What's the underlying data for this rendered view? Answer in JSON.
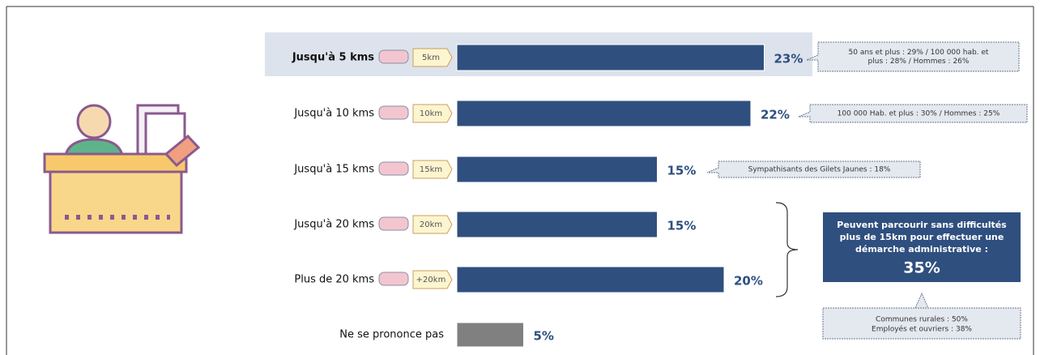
{
  "chart_data": {
    "type": "bar",
    "categories": [
      "Jusqu'à 5 kms",
      "Jusqu'à 10 kms",
      "Jusqu'à 15 kms",
      "Jusqu'à 20 kms",
      "Plus de 20 kms",
      "Ne se prononce pas"
    ],
    "tags": [
      "5km",
      "10km",
      "15km",
      "20km",
      "+20km",
      null
    ],
    "values": [
      23,
      22,
      15,
      15,
      20,
      5
    ],
    "value_labels": [
      "23%",
      "22%",
      "15%",
      "15%",
      "20%",
      "5%"
    ],
    "colors": [
      "#2f4f7f",
      "#2f4f7f",
      "#2f4f7f",
      "#2f4f7f",
      "#2f4f7f",
      "#808080"
    ],
    "annotations": [
      [
        "50 ans et plus : 29% / 100 000 hab. et",
        "plus : 28% / Hommes : 26%"
      ],
      [
        "100 000 Hab. et plus : 30% / Hommes : 25%"
      ],
      [
        "Sympathisants des Gilets Jaunes : 18%"
      ]
    ],
    "summary": {
      "text": [
        "Peuvent parcourir sans difficultés",
        "plus de 15km pour effectuer une",
        "démarche administrative :"
      ],
      "value_label": "35%",
      "notes": [
        "Communes rurales : 50%",
        "Employés et ouvriers : 38%"
      ]
    }
  }
}
